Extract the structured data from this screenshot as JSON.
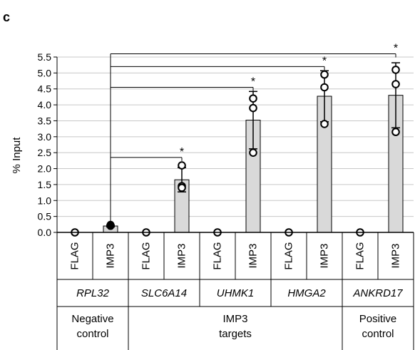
{
  "chart_data": {
    "type": "bar",
    "panel_label": "c",
    "ylabel": "% Input",
    "ylim": [
      0,
      5.5
    ],
    "ytick_step": 0.5,
    "grid": true,
    "conditions": [
      "FLAG",
      "IMP3",
      "FLAG",
      "IMP3",
      "FLAG",
      "IMP3",
      "FLAG",
      "IMP3",
      "FLAG",
      "IMP3"
    ],
    "genes": [
      "RPL32",
      "SLC6A14",
      "UHMK1",
      "HMGA2",
      "ANKRD17"
    ],
    "groups": [
      {
        "label_line1": "Negative",
        "label_line2": "control",
        "genes": 1
      },
      {
        "label_line1": "IMP3",
        "label_line2": "targets",
        "genes": 3
      },
      {
        "label_line1": "Positive",
        "label_line2": "control",
        "genes": 1
      }
    ],
    "values": [
      0.0,
      0.2,
      0.0,
      1.65,
      0.0,
      3.52,
      0.0,
      4.27,
      0.0,
      4.3
    ],
    "errors": [
      0.0,
      0.03,
      0.0,
      0.38,
      0.0,
      0.9,
      0.0,
      0.8,
      0.0,
      1.02
    ],
    "points": [
      {
        "bar": 0,
        "values": [
          0.0
        ],
        "filled": false
      },
      {
        "bar": 1,
        "values": [
          0.2,
          0.22,
          0.24
        ],
        "filled": true
      },
      {
        "bar": 2,
        "values": [
          0.0
        ],
        "filled": false
      },
      {
        "bar": 3,
        "values": [
          2.1,
          1.45,
          1.4
        ],
        "filled": false
      },
      {
        "bar": 4,
        "values": [
          0.0
        ],
        "filled": false
      },
      {
        "bar": 5,
        "values": [
          4.2,
          3.9,
          2.5
        ],
        "filled": false
      },
      {
        "bar": 6,
        "values": [
          0.0
        ],
        "filled": false
      },
      {
        "bar": 7,
        "values": [
          4.95,
          4.55,
          3.4
        ],
        "filled": false
      },
      {
        "bar": 8,
        "values": [
          0.0
        ],
        "filled": false
      },
      {
        "bar": 9,
        "values": [
          5.1,
          4.65,
          3.15
        ],
        "filled": false
      }
    ],
    "comparisons": [
      {
        "from_bar": 1,
        "to_bar": 3,
        "y": 2.35,
        "label": "*"
      },
      {
        "from_bar": 1,
        "to_bar": 5,
        "y": 4.55,
        "label": "*"
      },
      {
        "from_bar": 1,
        "to_bar": 7,
        "y": 5.2,
        "label": "*"
      },
      {
        "from_bar": 1,
        "to_bar": 9,
        "y": 5.6,
        "label": "*"
      }
    ],
    "colors": {
      "bar": "#d9d9d9",
      "grid": "#c8c8c8",
      "axis": "#000000"
    }
  }
}
